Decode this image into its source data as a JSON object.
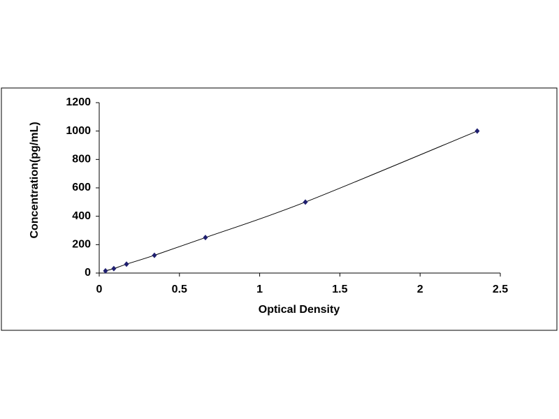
{
  "chart_data": {
    "type": "scatter",
    "x_label": "Optical Density",
    "y_label": "Concentration(pg/mL)",
    "series": [
      {
        "color": "#1f1f6f",
        "x": [
          0.039,
          0.091,
          0.17,
          0.344,
          0.662,
          1.285,
          2.356
        ],
        "values": [
          15.6,
          31.25,
          62.5,
          125,
          250,
          500,
          1000
        ]
      }
    ],
    "xlim": [
      0,
      2.5
    ],
    "xticks": [
      0,
      0.5,
      1,
      1.5,
      2,
      2.5
    ],
    "ylim": [
      0,
      1200
    ],
    "yticks": [
      0,
      200,
      400,
      600,
      800,
      1000,
      1200
    ],
    "grid": false
  }
}
